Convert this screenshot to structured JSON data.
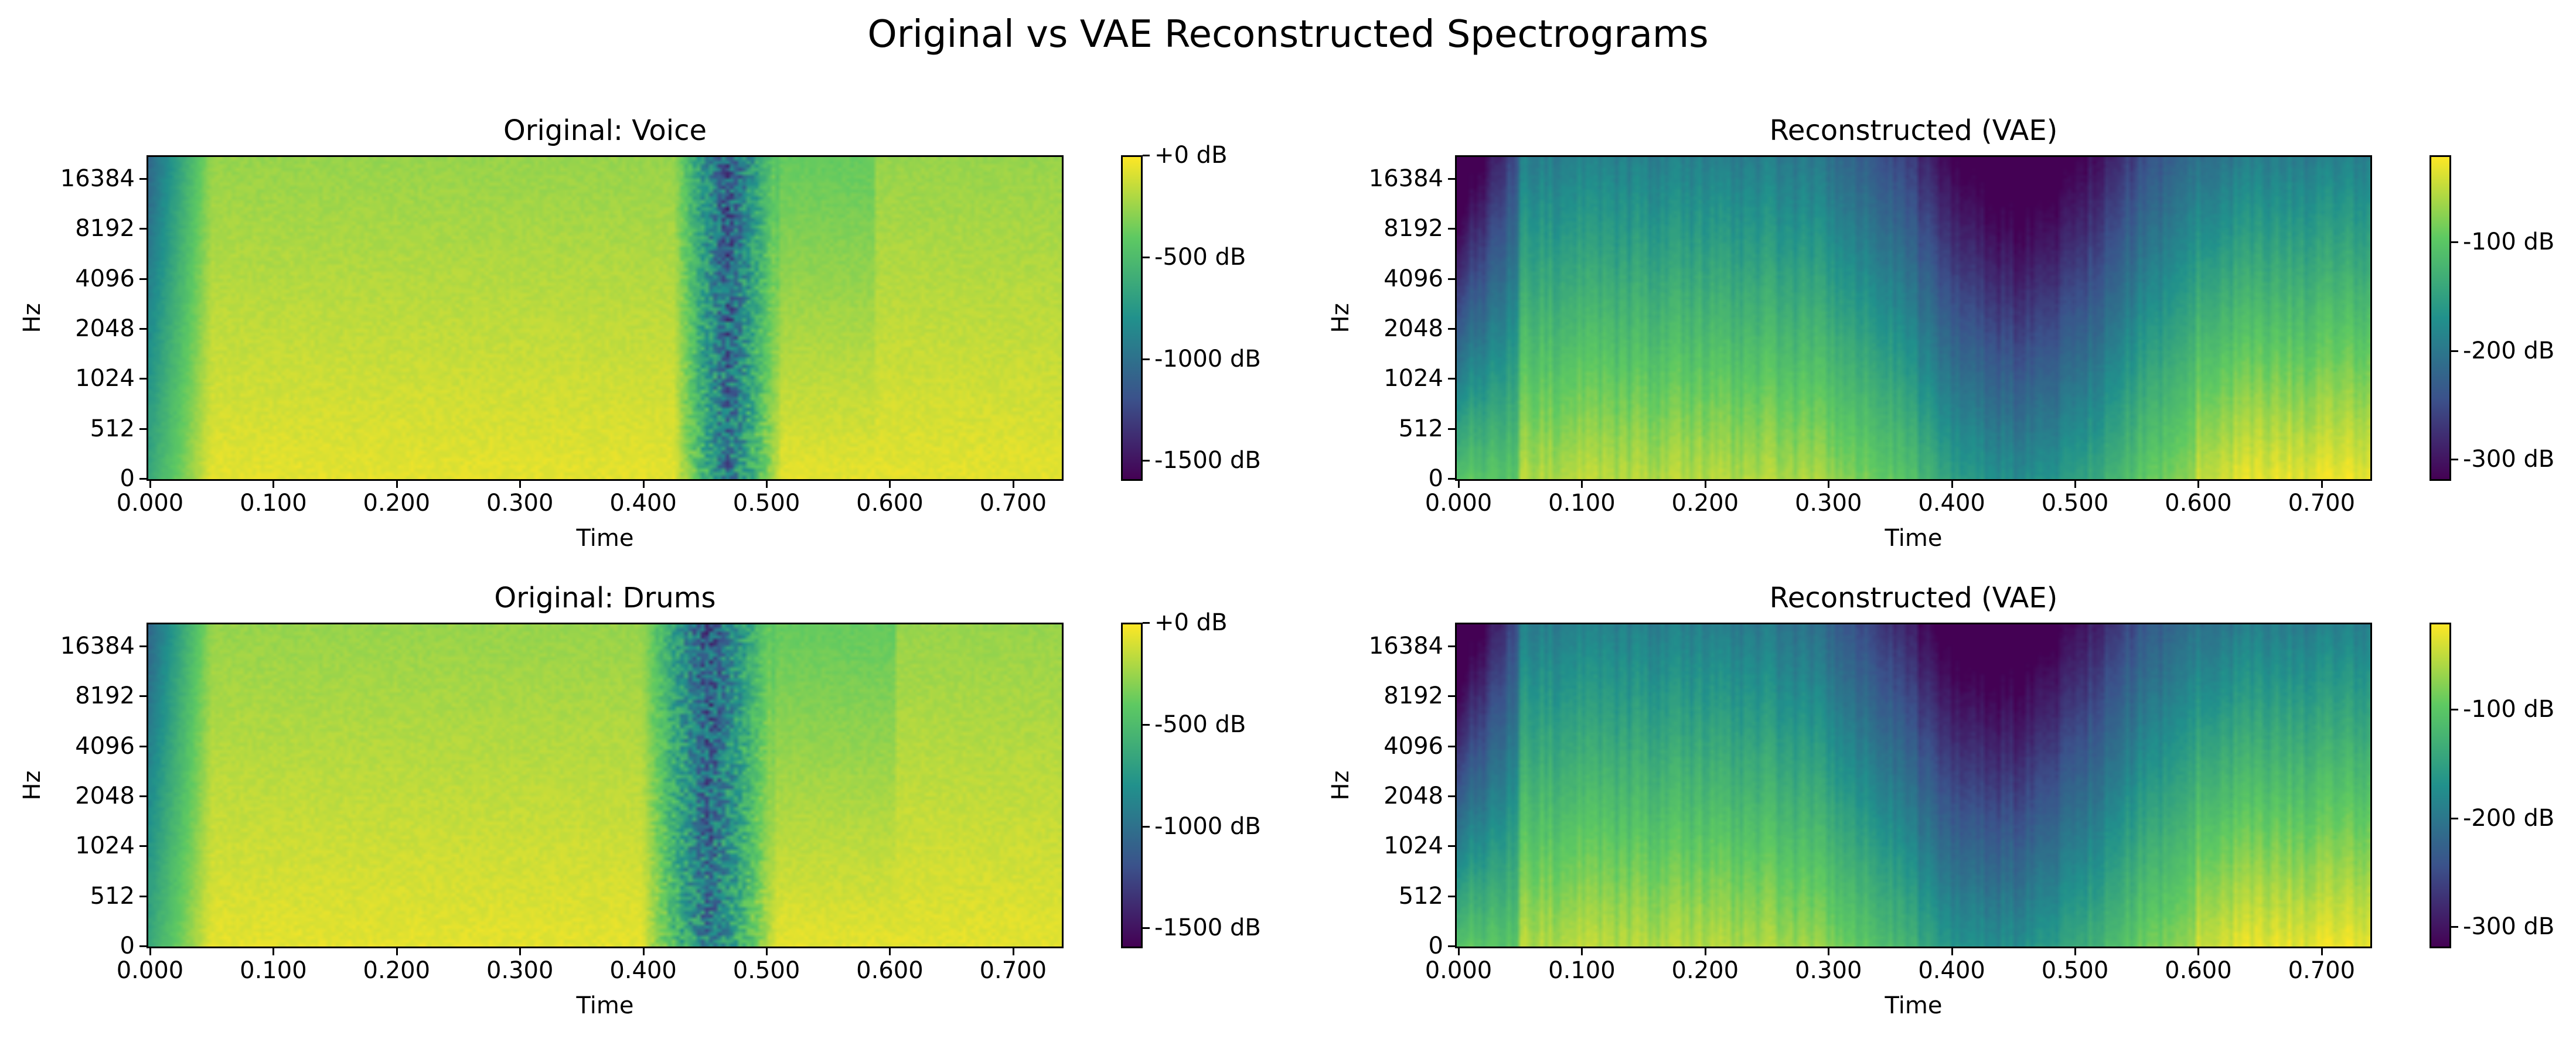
{
  "figure": {
    "suptitle": "Original vs VAE Reconstructed Spectrograms"
  },
  "colormap": {
    "name": "viridis",
    "stops": [
      "#440154",
      "#3b528b",
      "#21918c",
      "#5ec962",
      "#fde725"
    ]
  },
  "chart_data": [
    {
      "type": "heatmap",
      "title": "Original: Voice",
      "xlabel": "Time",
      "ylabel": "Hz",
      "xlim": [
        0.0,
        0.74
      ],
      "xticks": [
        "0.000",
        "0.100",
        "0.200",
        "0.300",
        "0.400",
        "0.500",
        "0.600",
        "0.700"
      ],
      "xtick_values": [
        0.0,
        0.1,
        0.2,
        0.3,
        0.4,
        0.5,
        0.6,
        0.7
      ],
      "yscale": "log-like",
      "yticks": [
        "0",
        "512",
        "1024",
        "2048",
        "4096",
        "8192",
        "16384"
      ],
      "colorbar": {
        "range_db": [
          -1600,
          0
        ],
        "ticks": [
          "+0 dB",
          "-500 dB",
          "-1000 dB",
          "-1500 dB"
        ],
        "tick_values": [
          0,
          -500,
          -1000,
          -1500
        ]
      },
      "pattern": {
        "kind": "original",
        "dark_band_time": [
          0.45,
          0.49
        ],
        "edge_fade_end": 0.05
      }
    },
    {
      "type": "heatmap",
      "title": "Reconstructed (VAE)",
      "xlabel": "Time",
      "ylabel": "Hz",
      "xlim": [
        0.0,
        0.74
      ],
      "xticks": [
        "0.000",
        "0.100",
        "0.200",
        "0.300",
        "0.400",
        "0.500",
        "0.600",
        "0.700"
      ],
      "xtick_values": [
        0.0,
        0.1,
        0.2,
        0.3,
        0.4,
        0.5,
        0.6,
        0.7
      ],
      "yscale": "log-like",
      "yticks": [
        "0",
        "512",
        "1024",
        "2048",
        "4096",
        "8192",
        "16384"
      ],
      "colorbar": {
        "range_db": [
          -320,
          -20
        ],
        "ticks": [
          "-100 dB",
          "-200 dB",
          "-300 dB"
        ],
        "tick_values": [
          -100,
          -200,
          -300
        ]
      },
      "pattern": {
        "kind": "recon",
        "dark_center_time": 0.455,
        "dark_width": 0.095
      }
    },
    {
      "type": "heatmap",
      "title": "Original: Drums",
      "xlabel": "Time",
      "ylabel": "Hz",
      "xlim": [
        0.0,
        0.74
      ],
      "xticks": [
        "0.000",
        "0.100",
        "0.200",
        "0.300",
        "0.400",
        "0.500",
        "0.600",
        "0.700"
      ],
      "xtick_values": [
        0.0,
        0.1,
        0.2,
        0.3,
        0.4,
        0.5,
        0.6,
        0.7
      ],
      "yscale": "log-like",
      "yticks": [
        "0",
        "512",
        "1024",
        "2048",
        "4096",
        "8192",
        "16384"
      ],
      "colorbar": {
        "range_db": [
          -1600,
          0
        ],
        "ticks": [
          "+0 dB",
          "-500 dB",
          "-1000 dB",
          "-1500 dB"
        ],
        "tick_values": [
          0,
          -500,
          -1000,
          -1500
        ]
      },
      "pattern": {
        "kind": "original",
        "dark_band_time": [
          0.43,
          0.48
        ],
        "edge_fade_end": 0.05
      }
    },
    {
      "type": "heatmap",
      "title": "Reconstructed (VAE)",
      "xlabel": "Time",
      "ylabel": "Hz",
      "xlim": [
        0.0,
        0.74
      ],
      "xticks": [
        "0.000",
        "0.100",
        "0.200",
        "0.300",
        "0.400",
        "0.500",
        "0.600",
        "0.700"
      ],
      "xtick_values": [
        0.0,
        0.1,
        0.2,
        0.3,
        0.4,
        0.5,
        0.6,
        0.7
      ],
      "yscale": "log-like",
      "yticks": [
        "0",
        "512",
        "1024",
        "2048",
        "4096",
        "8192",
        "16384"
      ],
      "colorbar": {
        "range_db": [
          -320,
          -20
        ],
        "ticks": [
          "-100 dB",
          "-200 dB",
          "-300 dB"
        ],
        "tick_values": [
          -100,
          -200,
          -300
        ]
      },
      "pattern": {
        "kind": "recon",
        "dark_center_time": 0.44,
        "dark_width": 0.1
      }
    }
  ]
}
